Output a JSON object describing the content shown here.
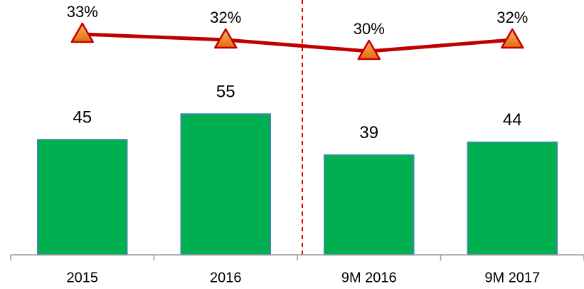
{
  "chart_data": {
    "type": "bar",
    "categories": [
      "2015",
      "2016",
      "9M 2016",
      "9M 2017"
    ],
    "series": [
      {
        "color": "#00b050",
        "values": [
          45,
          55,
          39,
          44
        ]
      },
      {
        "color": "#c00000",
        "axis": "y2",
        "values": [
          33,
          32,
          30,
          32
        ],
        "value_labels": [
          "33%",
          "32%",
          "30%",
          "32%"
        ]
      }
    ]
  }
}
